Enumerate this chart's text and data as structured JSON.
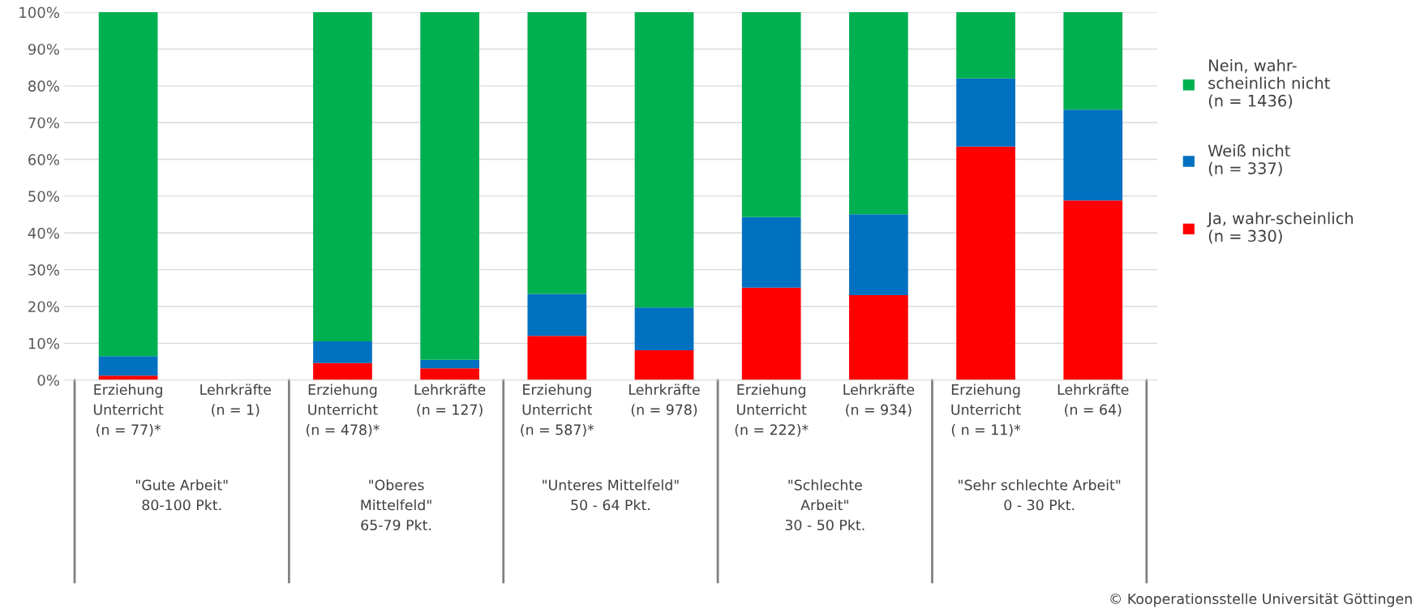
{
  "chart_data": {
    "type": "bar",
    "stacked": true,
    "categories": [
      "Erziehung\nUnterricht\n(n = 77)*",
      "Lehrkräfte\n(n = 1)",
      "Erziehung\nUnterricht\n(n = 478)*",
      "Lehrkräfte\n(n = 127)",
      "Erziehung\nUnterricht\n(n = 587)*",
      "Lehrkräfte\n(n = 978)",
      "Erziehung\nUnterricht\n(n = 222)*",
      "Lehrkräfte\n(n = 934)",
      "Erziehung\nUnterricht\n( n = 11)*",
      "Lehrkräfte\n(n = 64)"
    ],
    "series": [
      {
        "name": "Ja, wahr-scheinlich\n(n = 330)",
        "color": "#ff0000",
        "values": [
          1.2,
          null,
          4.6,
          3.2,
          12.0,
          8.1,
          25.1,
          23.1,
          63.5,
          48.8
        ]
      },
      {
        "name": "Weiß nicht\n(n = 337)",
        "color": "#0070c0",
        "values": [
          5.3,
          null,
          5.9,
          2.3,
          11.4,
          11.6,
          19.2,
          22.0,
          18.5,
          24.7
        ]
      },
      {
        "name": "Nein, wahr-\nscheinlich nicht\n(n = 1436)",
        "color": "#00b050",
        "values": [
          93.5,
          null,
          89.5,
          94.5,
          76.6,
          80.3,
          55.7,
          54.9,
          18.0,
          26.5
        ]
      }
    ],
    "ylim": [
      0,
      100
    ],
    "yticks": [
      {
        "value": 0,
        "label": "0%"
      },
      {
        "value": 10,
        "label": "10%"
      },
      {
        "value": 20,
        "label": "20%"
      },
      {
        "value": 30,
        "label": "30%"
      },
      {
        "value": 40,
        "label": "40%"
      },
      {
        "value": 50,
        "label": "50%"
      },
      {
        "value": 60,
        "label": "60%"
      },
      {
        "value": 70,
        "label": "70%"
      },
      {
        "value": 80,
        "label": "80%"
      },
      {
        "value": 90,
        "label": "90%"
      },
      {
        "value": 100,
        "label": "100%"
      }
    ],
    "grid": "y",
    "legend": "right",
    "annotations": [
      "\"Gute Arbeit\"\n80-100 Pkt.",
      "\"Oberes\nMittelfeld\"\n65-79 Pkt.",
      "\"Unteres Mittelfeld\"\n50 - 64 Pkt.",
      "\"Schlechte\nArbeit\"\n30 - 50 Pkt.",
      "\"Sehr schlechte Arbeit\"\n0 - 30 Pkt.",
      "© Kooperationsstelle Universität Göttingen"
    ]
  }
}
